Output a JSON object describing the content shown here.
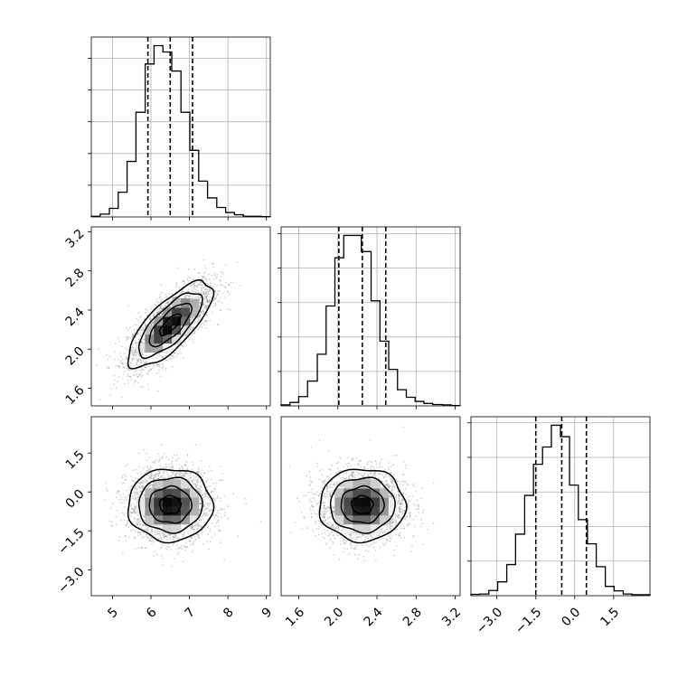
{
  "chart_data": {
    "type": "corner",
    "colors": {
      "line": "#000000",
      "grid": "#b0b0b0",
      "scatter": "#7f7f7f"
    },
    "grid": true,
    "parameters": [
      {
        "ticks": [
          5,
          6,
          7,
          8,
          9
        ],
        "range": [
          4.45,
          9.1
        ],
        "quantiles": [
          5.92,
          6.5,
          7.08
        ]
      },
      {
        "ticks": [
          1.6,
          2.0,
          2.4,
          2.8,
          3.2
        ],
        "range": [
          1.42,
          3.25
        ],
        "quantiles": [
          2.01,
          2.25,
          2.49
        ]
      },
      {
        "ticks": [
          -3.0,
          -1.5,
          0.0,
          1.5
        ],
        "range": [
          -4.0,
          2.9
        ],
        "quantiles": [
          -1.5,
          -0.5,
          0.45
        ]
      }
    ],
    "tick_labels": {
      "p0": [
        "5",
        "6",
        "7",
        "8",
        "9"
      ],
      "p1": [
        "1.6",
        "2.0",
        "2.4",
        "2.8",
        "3.2"
      ],
      "p2": [
        "−3.0",
        "−1.5",
        "0.0",
        "1.5"
      ]
    },
    "histograms": [
      {
        "param": 0,
        "bin_edges": [
          4.45,
          4.68,
          4.92,
          5.15,
          5.38,
          5.61,
          5.85,
          6.08,
          6.31,
          6.54,
          6.78,
          7.01,
          7.24,
          7.47,
          7.71,
          7.94,
          8.17,
          8.4,
          8.64,
          8.87,
          9.1
        ],
        "counts": [
          2,
          9,
          27,
          78,
          175,
          330,
          482,
          540,
          520,
          460,
          330,
          210,
          113,
          60,
          30,
          14,
          7,
          2,
          2,
          1
        ]
      },
      {
        "param": 1,
        "bin_edges": [
          1.42,
          1.51,
          1.6,
          1.69,
          1.79,
          1.88,
          1.97,
          2.06,
          2.15,
          2.24,
          2.34,
          2.43,
          2.52,
          2.61,
          2.7,
          2.79,
          2.88,
          2.97,
          3.07,
          3.16,
          3.25
        ],
        "counts": [
          3,
          10,
          27,
          72,
          150,
          290,
          430,
          495,
          495,
          448,
          305,
          188,
          106,
          47,
          25,
          13,
          7,
          4,
          3,
          1
        ]
      },
      {
        "param": 2,
        "bin_edges": [
          -4.0,
          -3.66,
          -3.31,
          -2.97,
          -2.62,
          -2.28,
          -1.93,
          -1.59,
          -1.24,
          -0.9,
          -0.55,
          -0.2,
          0.14,
          0.49,
          0.83,
          1.18,
          1.52,
          1.87,
          2.21,
          2.56,
          2.9
        ],
        "counts": [
          4,
          5,
          15,
          40,
          90,
          178,
          290,
          380,
          430,
          493,
          460,
          320,
          220,
          150,
          84,
          27,
          14,
          5,
          3,
          3
        ]
      }
    ],
    "joint": [
      {
        "x_param": 0,
        "y_param": 1,
        "center": [
          6.5,
          2.25
        ],
        "sd": [
          0.55,
          0.22
        ],
        "correlation": 0.75
      },
      {
        "x_param": 0,
        "y_param": 2,
        "center": [
          6.5,
          -0.5
        ],
        "sd": [
          0.55,
          0.7
        ],
        "correlation": 0.0
      },
      {
        "x_param": 1,
        "y_param": 2,
        "center": [
          2.25,
          -0.5
        ],
        "sd": [
          0.22,
          0.7
        ],
        "correlation": 0.0
      }
    ]
  }
}
